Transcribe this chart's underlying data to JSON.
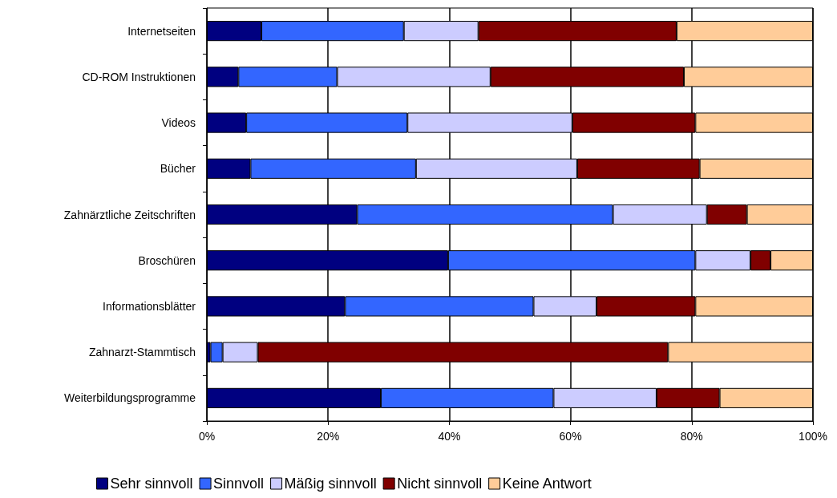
{
  "chart_data": {
    "type": "bar",
    "orientation": "horizontal",
    "stacked": true,
    "categories": [
      "Internetseiten",
      "CD-ROM Instruktionen",
      "Videos",
      "Bücher",
      "Zahnärztliche Zeitschriften",
      "Broschüren",
      "Informationsblätter",
      "Zahnarzt-Stammtisch",
      "Weiterbildungsprogramme"
    ],
    "series": [
      {
        "name": "Sehr sinnvoll",
        "color": "#000080",
        "values": [
          9.0,
          5.2,
          6.5,
          7.2,
          24.8,
          39.8,
          22.8,
          0.6,
          28.7
        ]
      },
      {
        "name": "Sinnvoll",
        "color": "#3366ff",
        "values": [
          23.5,
          16.3,
          26.6,
          27.3,
          42.2,
          40.8,
          31.1,
          2.0,
          28.5
        ]
      },
      {
        "name": "Mäßig sinnvoll",
        "color": "#ccccff",
        "values": [
          12.3,
          25.3,
          27.2,
          26.6,
          15.5,
          9.1,
          10.4,
          5.8,
          17.0
        ]
      },
      {
        "name": "Nicht sinnvoll",
        "color": "#800000",
        "values": [
          32.7,
          31.9,
          20.3,
          20.2,
          6.6,
          3.3,
          16.3,
          67.7,
          10.4
        ]
      },
      {
        "name": "Keine Antwort",
        "color": "#ffcc99",
        "values": [
          22.5,
          21.3,
          19.4,
          18.7,
          10.9,
          7.0,
          19.4,
          23.9,
          15.4
        ]
      }
    ],
    "xlim": [
      0,
      100
    ],
    "xticks": [
      {
        "value": 0,
        "label": "0%"
      },
      {
        "value": 20,
        "label": "20%"
      },
      {
        "value": 40,
        "label": "40%"
      },
      {
        "value": 60,
        "label": "60%"
      },
      {
        "value": 80,
        "label": "80%"
      },
      {
        "value": 100,
        "label": "100%"
      }
    ],
    "grid": "x",
    "legend": "bottom"
  }
}
